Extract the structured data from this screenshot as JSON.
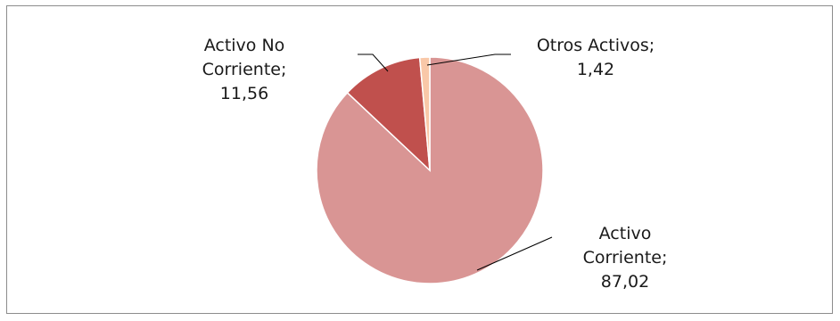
{
  "chart_data": {
    "type": "pie",
    "slices": [
      {
        "label": "Activo Corriente",
        "value": 87.02,
        "label_lines": [
          "Activo",
          "Corriente;",
          "87,02"
        ],
        "color": "#d99594"
      },
      {
        "label": "Activo No Corriente",
        "value": 11.56,
        "label_lines": [
          "Activo No",
          "Corriente;",
          "11,56"
        ],
        "color": "#c0504d"
      },
      {
        "label": "Otros Activos",
        "value": 1.42,
        "label_lines": [
          "Otros Activos;",
          "1,42"
        ],
        "color": "#f9c8a8"
      }
    ],
    "start_angle_deg": 0,
    "direction": "clockwise",
    "legend": "none",
    "leader_line_color": "#000000",
    "slice_border_color": "#ffffff"
  }
}
